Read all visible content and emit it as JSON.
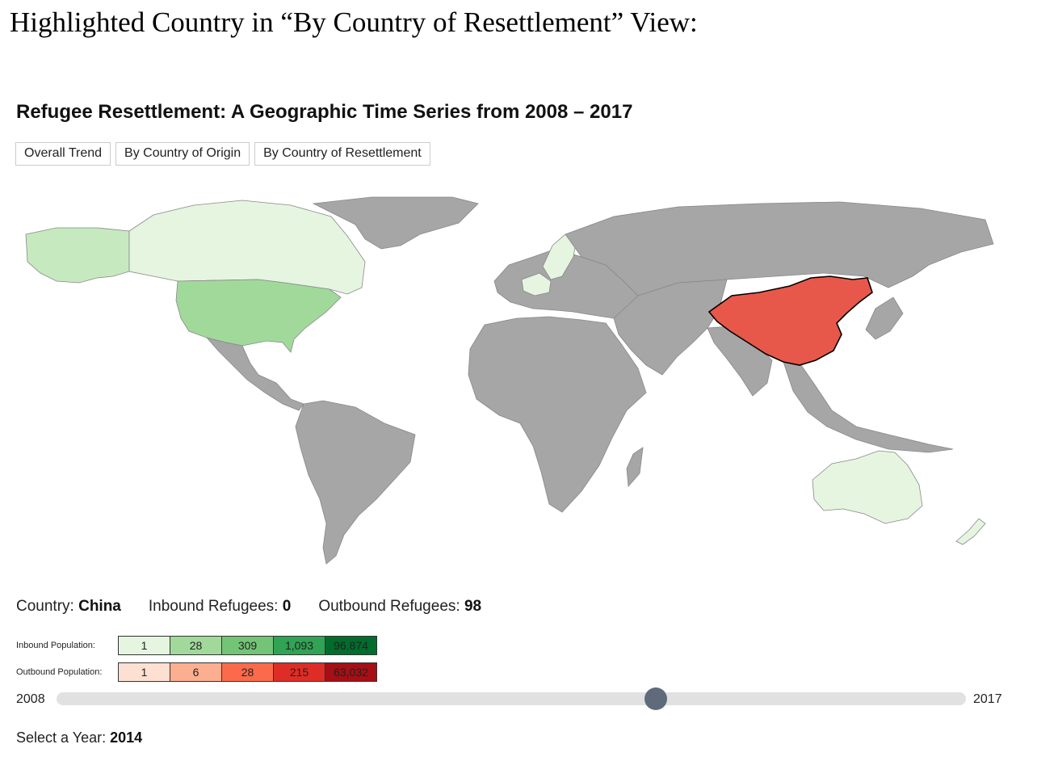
{
  "document": {
    "heading": "Highlighted Country in “By Country of Resettlement” View:"
  },
  "app": {
    "title": "Refugee Resettlement: A Geographic Time Series from 2008 – 2017"
  },
  "tabs": [
    {
      "label": "Overall Trend"
    },
    {
      "label": "By Country of Origin"
    },
    {
      "label": "By Country of Resettlement"
    }
  ],
  "map": {
    "highlighted_country": "China",
    "colors": {
      "ocean": "#ffffff",
      "no_data": "#a6a6a6",
      "border": "#888888",
      "highlight": "#e8584a",
      "highlight_border": "#000000",
      "inbound_light": "#e5f5e0",
      "inbound_mid": "#c7e9c0",
      "inbound_strong": "#a1d99b"
    }
  },
  "info": {
    "country_label": "Country:",
    "country_value": "China",
    "inbound_label": "Inbound Refugees:",
    "inbound_value": "0",
    "outbound_label": "Outbound Refugees:",
    "outbound_value": "98"
  },
  "legend": {
    "inbound": {
      "label": "Inbound Population:",
      "cells": [
        {
          "value": "1",
          "color": "#e5f5e0"
        },
        {
          "value": "28",
          "color": "#a1d99b"
        },
        {
          "value": "309",
          "color": "#74c476"
        },
        {
          "value": "1,093",
          "color": "#31a354"
        },
        {
          "value": "96,874",
          "color": "#006d2c"
        }
      ]
    },
    "outbound": {
      "label": "Outbound Population:",
      "cells": [
        {
          "value": "1",
          "color": "#fee0d2"
        },
        {
          "value": "6",
          "color": "#fcae91"
        },
        {
          "value": "28",
          "color": "#fb6a4a"
        },
        {
          "value": "215",
          "color": "#de2d26"
        },
        {
          "value": "63,032",
          "color": "#a50f15"
        }
      ]
    }
  },
  "slider": {
    "min_label": "2008",
    "max_label": "2017",
    "value": 2014,
    "min": 2008,
    "max": 2017
  },
  "year_select": {
    "label": "Select a Year:",
    "value": "2014"
  }
}
